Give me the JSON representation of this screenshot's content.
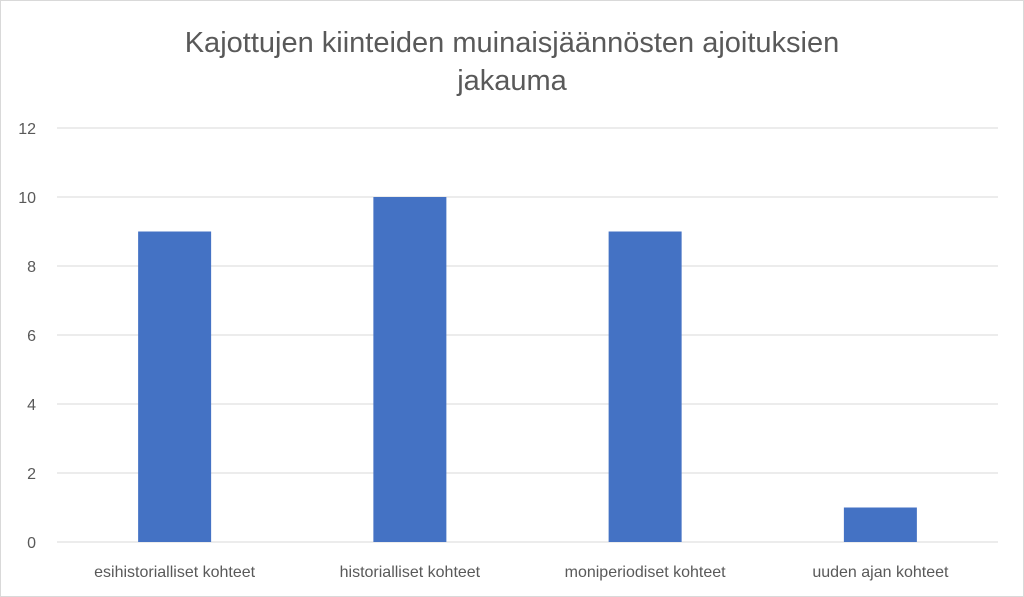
{
  "chart_data": {
    "type": "bar",
    "title_lines": [
      "Kajottujen kiinteiden muinaisjäännösten ajoituksien",
      "jakauma"
    ],
    "categories": [
      "esihistorialliset kohteet",
      "historialliset kohteet",
      "moniperiodiset kohteet",
      "uuden ajan kohteet"
    ],
    "values": [
      9,
      10,
      9,
      1
    ],
    "yticks": [
      "0",
      "2",
      "4",
      "6",
      "8",
      "10",
      "12"
    ],
    "ylim": [
      0,
      12
    ],
    "grid": true,
    "legend": "none",
    "bar_color": "#4472c4",
    "grid_color": "#d9d9d9"
  }
}
